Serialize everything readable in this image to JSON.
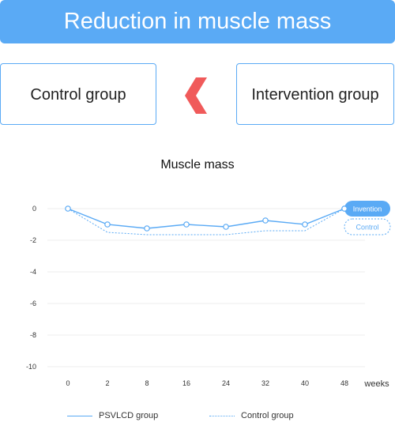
{
  "header": {
    "title": "Reduction in muscle mass"
  },
  "comparison": {
    "left_label": "Control group",
    "right_label": "Intervention group",
    "arrow_icon": "chevron-left-icon",
    "arrow_color": "#f05a5a"
  },
  "colors": {
    "accent": "#5aaaf5"
  },
  "chart_data": {
    "type": "line",
    "title": "Muscle mass",
    "xlabel": "weeks",
    "ylabel": "",
    "categories": [
      "0",
      "2",
      "8",
      "16",
      "24",
      "32",
      "40",
      "48"
    ],
    "ylim": [
      -10,
      0
    ],
    "yticks": [
      0,
      -2,
      -4,
      -6,
      -8,
      -10
    ],
    "grid": true,
    "series": [
      {
        "name": "PSVLCD group",
        "style": "solid",
        "values": [
          0,
          -1.0,
          -1.25,
          -1.0,
          -1.15,
          -0.75,
          -1.0,
          0
        ]
      },
      {
        "name": "Control group",
        "style": "dotted",
        "values": [
          0,
          -1.5,
          -1.65,
          -1.65,
          -1.65,
          -1.4,
          -1.4,
          0
        ]
      }
    ],
    "end_labels": [
      "Invention",
      "Control"
    ],
    "legend_position": "bottom"
  }
}
